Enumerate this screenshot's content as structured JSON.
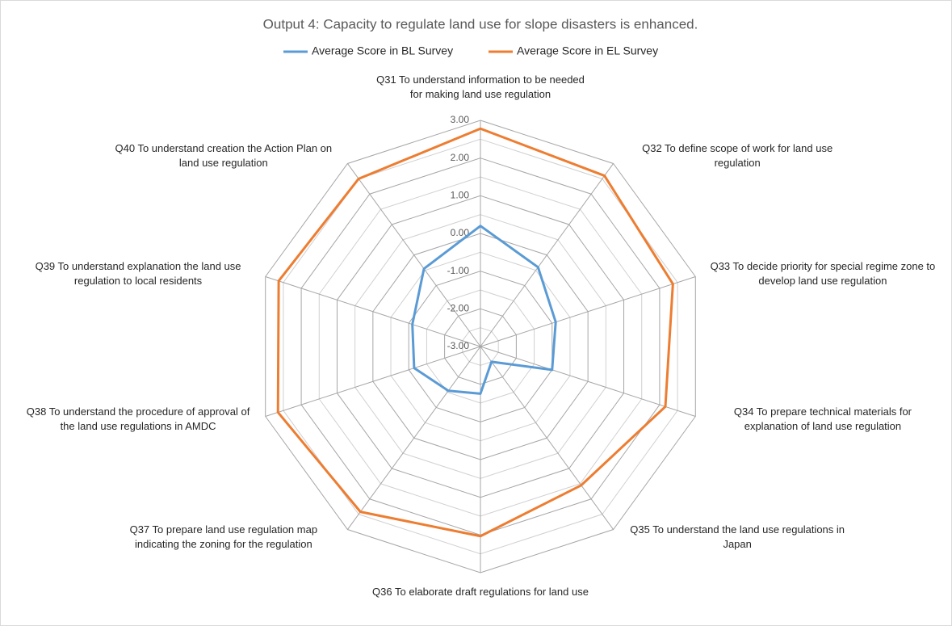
{
  "chart_data": {
    "type": "radar",
    "title": "Output 4: Capacity to regulate land use for slope disasters is enhanced.",
    "categories": [
      "Q31 To understand information to be needed for making land use regulation",
      "Q32 To define scope of work for land use regulation",
      "Q33 To decide priority for special regime zone to develop land use regulation",
      "Q34 To prepare technical materials for explanation of land use regulation",
      "Q35 To understand the land use regulations in Japan",
      "Q36 To elaborate draft regulations for land use",
      "Q37 To prepare land use regulation map indicating the zoning for the regulation",
      "Q38 To understand the procedure of approval of the land use regulations in AMDC",
      "Q39 To understand explanation the land use regulation to local residents",
      "Q40 To understand creation the Action Plan on land use regulation"
    ],
    "series": [
      {
        "name": "Average Score in BL Survey",
        "color": "#5b9bd5",
        "values": [
          0.2,
          -0.4,
          -0.9,
          -1.0,
          -2.5,
          -1.75,
          -1.55,
          -1.15,
          -1.1,
          -0.45
        ]
      },
      {
        "name": "Average Score in EL Survey",
        "color": "#ed7d31",
        "values": [
          2.78,
          2.6,
          2.37,
          2.16,
          1.55,
          2.03,
          2.42,
          2.65,
          2.63,
          2.5
        ]
      }
    ],
    "ylim": [
      -3,
      3
    ],
    "yticks": [
      {
        "value": 3,
        "label": "3.00"
      },
      {
        "value": 2,
        "label": "2.00"
      },
      {
        "value": 1,
        "label": "1.00"
      },
      {
        "value": 0,
        "label": "0.00"
      },
      {
        "value": -1,
        "label": "-1.00"
      },
      {
        "value": -2,
        "label": "-2.00"
      },
      {
        "value": -3,
        "label": "-3.00"
      }
    ],
    "legend": "top",
    "grid": true
  }
}
